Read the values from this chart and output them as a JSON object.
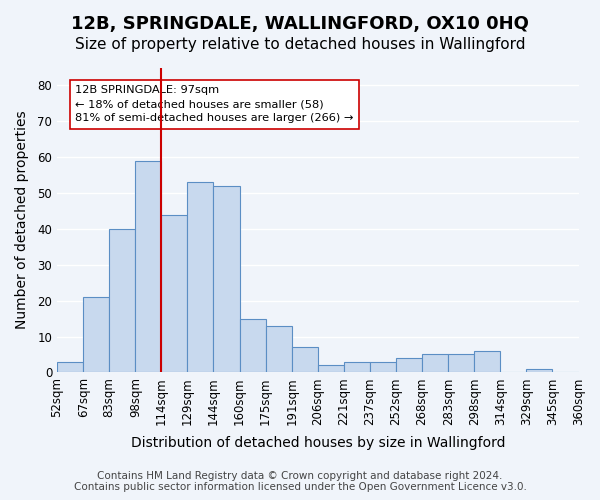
{
  "title": "12B, SPRINGDALE, WALLINGFORD, OX10 0HQ",
  "subtitle": "Size of property relative to detached houses in Wallingford",
  "xlabel": "Distribution of detached houses by size in Wallingford",
  "ylabel": "Number of detached properties",
  "bin_labels": [
    "52sqm",
    "67sqm",
    "83sqm",
    "98sqm",
    "114sqm",
    "129sqm",
    "144sqm",
    "160sqm",
    "175sqm",
    "191sqm",
    "206sqm",
    "221sqm",
    "237sqm",
    "252sqm",
    "268sqm",
    "283sqm",
    "298sqm",
    "314sqm",
    "329sqm",
    "345sqm",
    "360sqm"
  ],
  "bar_values": [
    3,
    21,
    40,
    59,
    44,
    53,
    52,
    15,
    13,
    7,
    2,
    3,
    3,
    4,
    5,
    5,
    6,
    0,
    1,
    0
  ],
  "bar_color": "#c8d9ee",
  "bar_edge_color": "#5b8ec4",
  "vline_color": "#cc0000",
  "vline_position": 3.5,
  "annotation_text": "12B SPRINGDALE: 97sqm\n← 18% of detached houses are smaller (58)\n81% of semi-detached houses are larger (266) →",
  "annotation_box_color": "#ffffff",
  "annotation_box_edge": "#cc0000",
  "ylim": [
    0,
    85
  ],
  "yticks": [
    0,
    10,
    20,
    30,
    40,
    50,
    60,
    70,
    80
  ],
  "footer_line1": "Contains HM Land Registry data © Crown copyright and database right 2024.",
  "footer_line2": "Contains public sector information licensed under the Open Government Licence v3.0.",
  "background_color": "#f0f4fa",
  "grid_color": "#ffffff",
  "title_fontsize": 13,
  "subtitle_fontsize": 11,
  "axis_fontsize": 10,
  "tick_fontsize": 8.5,
  "footer_fontsize": 7.5
}
